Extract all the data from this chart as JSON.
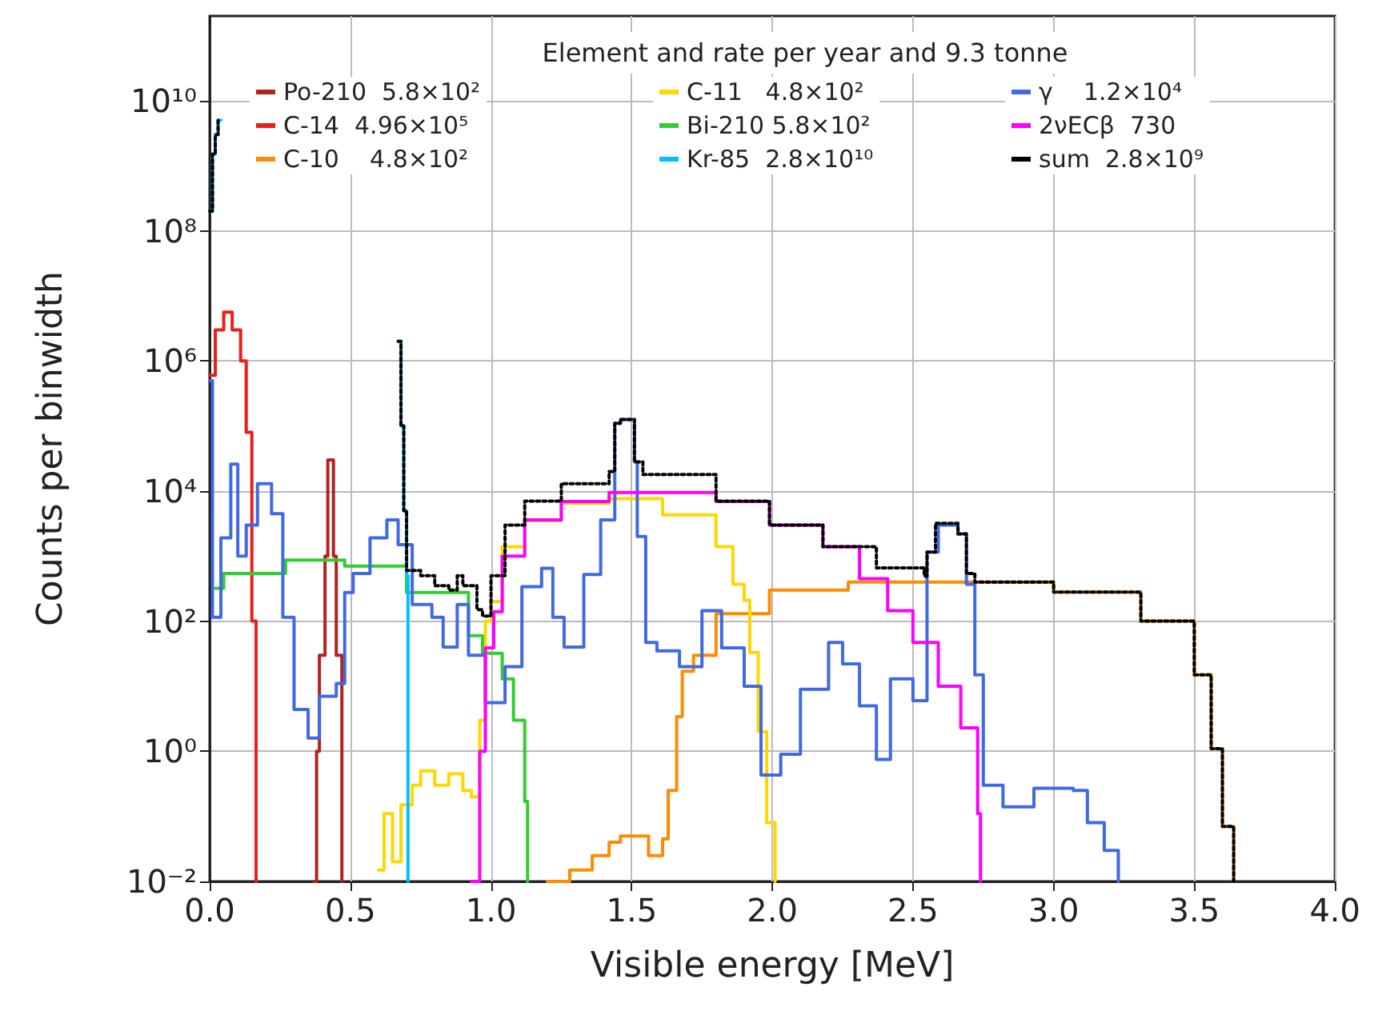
{
  "chart_data": {
    "type": "step",
    "xlabel": "Visible energy [MeV]",
    "ylabel": "Counts per binwidth",
    "legend_title": "Element and rate per year and 9.3 tonne",
    "legend": "top",
    "grid": true,
    "log": "y",
    "marker": "none",
    "line_style": "solid",
    "xlim": [
      0,
      4
    ],
    "xticks": [
      {
        "value": 0,
        "label": "0.0"
      },
      {
        "value": 0.5,
        "label": "0.5"
      },
      {
        "value": 1,
        "label": "1.0"
      },
      {
        "value": 1.5,
        "label": "1.5"
      },
      {
        "value": 2,
        "label": "2.0"
      },
      {
        "value": 2.5,
        "label": "2.5"
      },
      {
        "value": 3,
        "label": "3.0"
      },
      {
        "value": 3.5,
        "label": "3.5"
      },
      {
        "value": 4,
        "label": "4.0"
      }
    ],
    "ylim": [
      0.01,
      200000000000
    ],
    "yticks": [
      {
        "value": 0.01,
        "label": "10⁻²"
      },
      {
        "value": 1,
        "label": "10⁰"
      },
      {
        "value": 100,
        "label": "10²"
      },
      {
        "value": 10000,
        "label": "10⁴"
      },
      {
        "value": 1000000,
        "label": "10⁶"
      },
      {
        "value": 100000000,
        "label": "10⁸"
      },
      {
        "value": 10000000000,
        "label": "10¹⁰"
      }
    ],
    "series": [
      {
        "name": "Po-210  5.8×10²",
        "color": "#b22222",
        "x": [
          0.37,
          0.38,
          0.39,
          0.41,
          0.42,
          0.44,
          0.45,
          0.47
        ],
        "values": [
          0.01,
          1,
          30,
          1000,
          30000,
          1000,
          30,
          0.01
        ]
      },
      {
        "name": "C-14  4.96×10⁵",
        "color": "#e8201c",
        "x": [
          0,
          0.02,
          0.05,
          0.08,
          0.11,
          0.13,
          0.15,
          0.165
        ],
        "values": [
          600000,
          3000000,
          5600000,
          3000000,
          1000000,
          80000,
          100,
          0.01
        ]
      },
      {
        "name": "C-10    4.8×10²",
        "color": "#ff8c00",
        "x": [
          1.2,
          1.28,
          1.36,
          1.42,
          1.46,
          1.56,
          1.61,
          1.63,
          1.66,
          1.68,
          1.72,
          1.8,
          1.99,
          2.27,
          2.56,
          3,
          3.31,
          3.5,
          3.56,
          3.6,
          3.64
        ],
        "values": [
          0.01,
          0.015,
          0.025,
          0.04,
          0.05,
          0.025,
          0.045,
          0.25,
          3.4,
          17,
          30,
          130,
          300,
          400,
          400,
          280,
          100,
          15,
          1.1,
          0.07,
          0.01
        ]
      },
      {
        "name": "C-11   4.8×10²",
        "color": "#ffd700",
        "x": [
          0.6,
          0.62,
          0.65,
          0.68,
          0.72,
          0.75,
          0.8,
          0.85,
          0.9,
          0.93,
          0.96,
          0.98,
          1,
          1.04,
          1.12,
          1.25,
          1.42,
          1.61,
          1.8,
          1.86,
          1.9,
          1.92,
          1.95,
          1.98,
          2.01
        ],
        "values": [
          0.015,
          0.11,
          0.02,
          0.15,
          0.3,
          0.5,
          0.3,
          0.45,
          0.25,
          0.2,
          3,
          100,
          200,
          1400,
          3500,
          6500,
          7600,
          4300,
          1400,
          370,
          210,
          33,
          2,
          0.08,
          0.01
        ]
      },
      {
        "name": "Bi-210 5.8×10²",
        "color": "#32cd32",
        "x": [
          0.02,
          0.05,
          0.27,
          0.48,
          0.7,
          0.92,
          0.97,
          1.04,
          1.08,
          1.12,
          1.13
        ],
        "values": [
          320,
          540,
          870,
          700,
          275,
          60,
          32,
          13,
          3,
          0.17,
          0.01
        ]
      },
      {
        "name": "Kr-85  2.8×10¹⁰",
        "color": "#00bfff",
        "x": [
          0,
          0.01,
          0.02,
          0.03,
          0.04,
          0.66,
          0.67,
          0.68,
          0.69,
          0.7,
          0.705
        ],
        "values": [
          200000000,
          1500000000,
          3000000000,
          5000000000,
          null,
          null,
          2000000,
          100000,
          5000,
          500,
          0.01
        ]
      },
      {
        "name": "γ    1.2×10⁴",
        "color": "#4169e1",
        "x": [
          0,
          0.01,
          0.04,
          0.075,
          0.1,
          0.13,
          0.17,
          0.22,
          0.26,
          0.3,
          0.35,
          0.39,
          0.45,
          0.48,
          0.51,
          0.57,
          0.63,
          0.67,
          0.72,
          0.79,
          0.83,
          0.88,
          0.92,
          0.98,
          1.05,
          1.11,
          1.18,
          1.22,
          1.26,
          1.33,
          1.39,
          1.44,
          1.46,
          1.51,
          1.52,
          1.55,
          1.59,
          1.67,
          1.75,
          1.82,
          1.9,
          1.96,
          2.03,
          2.1,
          2.2,
          2.25,
          2.31,
          2.37,
          2.42,
          2.5,
          2.55,
          2.59,
          2.66,
          2.69,
          2.72,
          2.75,
          2.82,
          2.93,
          3.07,
          3.12,
          3.18,
          3.23
        ],
        "values": [
          500000,
          115,
          1900,
          26000,
          1000,
          3000,
          13000,
          4500,
          115,
          4.4,
          1.6,
          7,
          11,
          275,
          540,
          1900,
          3600,
          1500,
          180,
          115,
          40,
          180,
          30,
          5.6,
          20,
          340,
          650,
          115,
          40,
          520,
          3600,
          110000,
          126000,
          28000,
          2000,
          47,
          35,
          20,
          145,
          39,
          10,
          0.43,
          0.9,
          9,
          47,
          22,
          5,
          0.75,
          13,
          6,
          1150,
          3000,
          2200,
          370,
          15,
          0.3,
          0.14,
          0.27,
          0.25,
          0.08,
          0.03,
          0.01
        ]
      },
      {
        "name": "2νECβ  730",
        "color": "#ff00ff",
        "x": [
          0.93,
          0.96,
          0.98,
          1.01,
          1.04,
          1.12,
          1.25,
          1.42,
          1.8,
          1.99,
          2.18,
          2.31,
          2.41,
          2.5,
          2.59,
          2.67,
          2.73,
          2.74
        ],
        "values": [
          0.01,
          1,
          39,
          140,
          1000,
          3600,
          6900,
          9500,
          6900,
          3000,
          1400,
          450,
          145,
          47,
          10,
          2.3,
          0.11,
          0.01
        ]
      },
      {
        "name": "sum  2.8×10⁹",
        "color": "#000000",
        "line_style": "dotted",
        "x": [
          0,
          0.01,
          0.02,
          0.03,
          0.04,
          0.66,
          0.67,
          0.68,
          0.69,
          0.7,
          0.75,
          0.8,
          0.85,
          0.88,
          0.9,
          0.95,
          0.97,
          1,
          1.05,
          1.12,
          1.25,
          1.42,
          1.44,
          1.46,
          1.51,
          1.54,
          1.8,
          1.99,
          2.18,
          2.37,
          2.54,
          2.55,
          2.58,
          2.66,
          2.69,
          2.72,
          3,
          3.31,
          3.5,
          3.56,
          3.6,
          3.64
        ],
        "values": [
          200000000,
          1500000000,
          3000000000,
          5000000000,
          null,
          null,
          2000000,
          100000,
          5000,
          600,
          500,
          350,
          300,
          500,
          350,
          150,
          120,
          500,
          3000,
          7000,
          13000,
          20000,
          110000,
          126000,
          28000,
          18000,
          7000,
          3000,
          1400,
          660,
          490,
          1150,
          3200,
          2200,
          540,
          400,
          280,
          100,
          15,
          1.1,
          0.07,
          0.01
        ]
      }
    ]
  }
}
